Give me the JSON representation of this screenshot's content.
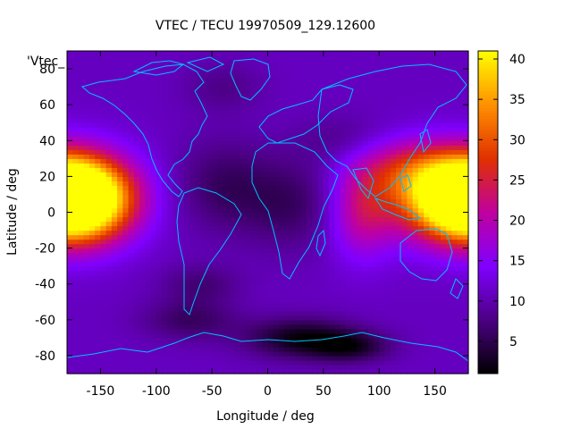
{
  "chart_data": {
    "type": "heatmap",
    "title": "VTEC / TECU 19970509_129.12600",
    "xlabel": "Longitude / deg",
    "ylabel": "Latitude / deg",
    "series_key": "'Vtec_",
    "xlim": [
      -180,
      180
    ],
    "ylim": [
      -90,
      90
    ],
    "x_ticks": [
      -150,
      -100,
      -50,
      0,
      50,
      100,
      150
    ],
    "y_ticks": [
      -80,
      -60,
      -40,
      -20,
      0,
      20,
      40,
      60,
      80
    ],
    "colorbar": {
      "min": 1,
      "max": 41,
      "ticks": [
        5,
        10,
        15,
        20,
        25,
        30,
        35,
        40
      ]
    },
    "grid": false,
    "palette": [
      "#000000",
      "#4b0082",
      "#8000ff",
      "#c000a0",
      "#e03000",
      "#ff9000",
      "#ffff00"
    ],
    "coastline_color": "#00bfff",
    "field_model": {
      "background": 11,
      "features": [
        {
          "lon": -170,
          "lat": 8,
          "amp": 30,
          "slon": 32,
          "slat": 16
        },
        {
          "lon": 172,
          "lat": 8,
          "amp": 30,
          "slon": 40,
          "slat": 16
        },
        {
          "lon": 125,
          "lat": 25,
          "amp": 10,
          "slon": 35,
          "slat": 12
        },
        {
          "lon": 85,
          "lat": 0,
          "amp": 10,
          "slon": 20,
          "slat": 18
        },
        {
          "lon": -40,
          "lat": 15,
          "amp": -5,
          "slon": 30,
          "slat": 18
        },
        {
          "lon": 20,
          "lat": 5,
          "amp": -5,
          "slon": 30,
          "slat": 18
        },
        {
          "lon": -40,
          "lat": 70,
          "amp": -3,
          "slon": 25,
          "slat": 10
        },
        {
          "lon": 30,
          "lat": -70,
          "amp": -9,
          "slon": 35,
          "slat": 8
        },
        {
          "lon": -70,
          "lat": -60,
          "amp": -5,
          "slon": 30,
          "slat": 8
        },
        {
          "lon": 75,
          "lat": -75,
          "amp": -7,
          "slon": 25,
          "slat": 6
        },
        {
          "lon": -60,
          "lat": -40,
          "amp": -4,
          "slon": 25,
          "slat": 8
        },
        {
          "lon": 70,
          "lat": 40,
          "amp": -3,
          "slon": 30,
          "slat": 10
        }
      ]
    }
  }
}
